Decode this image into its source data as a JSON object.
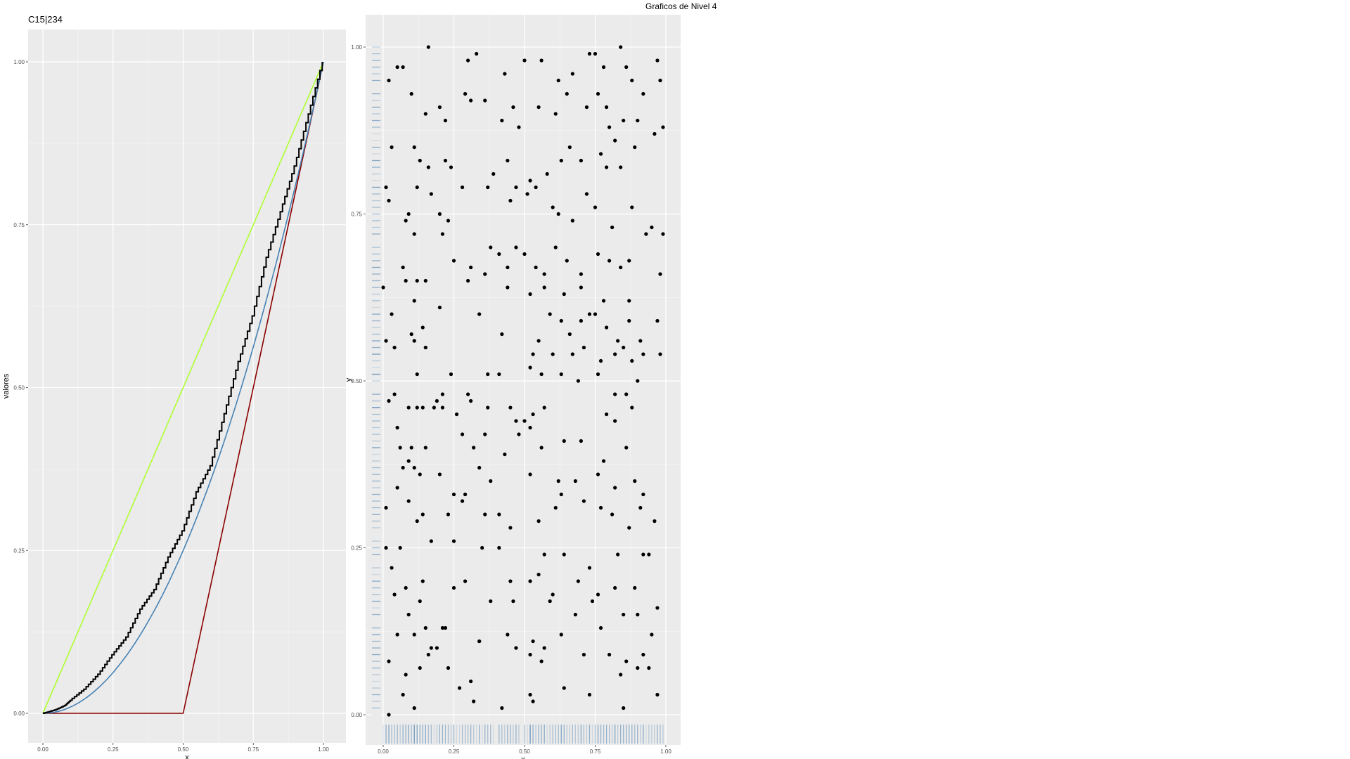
{
  "title": "Graficos de Nivel 4",
  "chart_data": [
    {
      "type": "line",
      "title": "C15|234",
      "xlabel": "x",
      "ylabel": "valores",
      "xlim": [
        0,
        1
      ],
      "ylim": [
        0,
        1
      ],
      "x_ticks": [
        "0.00",
        "0.25",
        "0.50",
        "0.75",
        "1.00"
      ],
      "y_ticks": [
        "0.00",
        "0.25",
        "0.50",
        "0.75",
        "1.00"
      ],
      "grid": true,
      "series": [
        {
          "color": "#adff2f",
          "x": [
            0,
            1
          ],
          "values": [
            0,
            1
          ]
        },
        {
          "color": "#8b0000",
          "x": [
            0,
            0.5,
            1
          ],
          "values": [
            0,
            0,
            1
          ]
        },
        {
          "color": "#4682b4",
          "formula": "x^2",
          "x": [
            0,
            0.1,
            0.2,
            0.3,
            0.4,
            0.5,
            0.6,
            0.7,
            0.8,
            0.9,
            1
          ],
          "values": [
            0,
            0.01,
            0.04,
            0.09,
            0.16,
            0.25,
            0.36,
            0.49,
            0.64,
            0.81,
            1
          ]
        },
        {
          "color": "#000000",
          "step": true,
          "x": [
            0,
            0.02,
            0.05,
            0.08,
            0.1,
            0.15,
            0.2,
            0.25,
            0.3,
            0.35,
            0.4,
            0.45,
            0.5,
            0.55,
            0.6,
            0.65,
            0.7,
            0.75,
            0.8,
            0.85,
            0.9,
            0.95,
            1
          ],
          "values": [
            0,
            0.002,
            0.006,
            0.012,
            0.02,
            0.037,
            0.06,
            0.09,
            0.117,
            0.16,
            0.19,
            0.24,
            0.28,
            0.34,
            0.38,
            0.46,
            0.54,
            0.61,
            0.7,
            0.77,
            0.84,
            0.92,
            1
          ]
        }
      ]
    },
    {
      "type": "scatter",
      "xlabel": "x",
      "ylabel": "y",
      "xlim": [
        0,
        1
      ],
      "ylim": [
        0,
        1
      ],
      "x_ticks": [
        "0.00",
        "0.25",
        "0.50",
        "0.75",
        "1.00"
      ],
      "y_ticks": [
        "0.00",
        "0.25",
        "0.50",
        "0.75",
        "1.00"
      ],
      "grid": true,
      "rug": true,
      "point_color": "#000000",
      "rug_color": "#4682b4",
      "points": [
        [
          0.02,
          0.95
        ],
        [
          0.05,
          0.97
        ],
        [
          0.07,
          0.97
        ],
        [
          0.16,
          1.0
        ],
        [
          0.3,
          0.98
        ],
        [
          0.33,
          0.99
        ],
        [
          0.43,
          0.96
        ],
        [
          0.5,
          0.98
        ],
        [
          0.56,
          0.98
        ],
        [
          0.62,
          0.95
        ],
        [
          0.67,
          0.96
        ],
        [
          0.73,
          0.99
        ],
        [
          0.75,
          0.99
        ],
        [
          0.78,
          0.97
        ],
        [
          0.84,
          1.0
        ],
        [
          0.86,
          0.97
        ],
        [
          0.88,
          0.95
        ],
        [
          0.92,
          0.93
        ],
        [
          0.97,
          0.98
        ],
        [
          0.98,
          0.95
        ],
        [
          0.1,
          0.93
        ],
        [
          0.15,
          0.9
        ],
        [
          0.2,
          0.91
        ],
        [
          0.22,
          0.89
        ],
        [
          0.29,
          0.93
        ],
        [
          0.31,
          0.92
        ],
        [
          0.36,
          0.92
        ],
        [
          0.42,
          0.89
        ],
        [
          0.46,
          0.91
        ],
        [
          0.48,
          0.88
        ],
        [
          0.55,
          0.91
        ],
        [
          0.61,
          0.9
        ],
        [
          0.65,
          0.93
        ],
        [
          0.72,
          0.91
        ],
        [
          0.76,
          0.93
        ],
        [
          0.79,
          0.91
        ],
        [
          0.8,
          0.88
        ],
        [
          0.85,
          0.89
        ],
        [
          0.9,
          0.89
        ],
        [
          0.96,
          0.87
        ],
        [
          0.99,
          0.88
        ],
        [
          0.03,
          0.85
        ],
        [
          0.11,
          0.85
        ],
        [
          0.13,
          0.83
        ],
        [
          0.16,
          0.82
        ],
        [
          0.22,
          0.83
        ],
        [
          0.24,
          0.82
        ],
        [
          0.39,
          0.81
        ],
        [
          0.44,
          0.83
        ],
        [
          0.47,
          0.79
        ],
        [
          0.52,
          0.8
        ],
        [
          0.58,
          0.81
        ],
        [
          0.63,
          0.83
        ],
        [
          0.66,
          0.85
        ],
        [
          0.7,
          0.83
        ],
        [
          0.77,
          0.84
        ],
        [
          0.79,
          0.82
        ],
        [
          0.82,
          0.86
        ],
        [
          0.84,
          0.82
        ],
        [
          0.89,
          0.85
        ],
        [
          0.01,
          0.79
        ],
        [
          0.02,
          0.77
        ],
        [
          0.09,
          0.75
        ],
        [
          0.12,
          0.79
        ],
        [
          0.17,
          0.78
        ],
        [
          0.2,
          0.75
        ],
        [
          0.23,
          0.74
        ],
        [
          0.28,
          0.79
        ],
        [
          0.37,
          0.79
        ],
        [
          0.45,
          0.77
        ],
        [
          0.51,
          0.78
        ],
        [
          0.54,
          0.79
        ],
        [
          0.6,
          0.76
        ],
        [
          0.62,
          0.75
        ],
        [
          0.67,
          0.74
        ],
        [
          0.72,
          0.78
        ],
        [
          0.75,
          0.76
        ],
        [
          0.81,
          0.73
        ],
        [
          0.88,
          0.76
        ],
        [
          0.93,
          0.72
        ],
        [
          0.95,
          0.73
        ],
        [
          0.99,
          0.72
        ],
        [
          0.08,
          0.74
        ],
        [
          0.11,
          0.72
        ],
        [
          0.21,
          0.72
        ],
        [
          0.25,
          0.68
        ],
        [
          0.31,
          0.67
        ],
        [
          0.38,
          0.7
        ],
        [
          0.41,
          0.69
        ],
        [
          0.44,
          0.67
        ],
        [
          0.47,
          0.7
        ],
        [
          0.5,
          0.69
        ],
        [
          0.54,
          0.67
        ],
        [
          0.57,
          0.66
        ],
        [
          0.61,
          0.7
        ],
        [
          0.65,
          0.68
        ],
        [
          0.7,
          0.66
        ],
        [
          0.76,
          0.69
        ],
        [
          0.8,
          0.68
        ],
        [
          0.84,
          0.67
        ],
        [
          0.87,
          0.68
        ],
        [
          0.98,
          0.66
        ],
        [
          0.0,
          0.64
        ],
        [
          0.07,
          0.67
        ],
        [
          0.08,
          0.65
        ],
        [
          0.12,
          0.65
        ],
        [
          0.15,
          0.65
        ],
        [
          0.3,
          0.65
        ],
        [
          0.36,
          0.66
        ],
        [
          0.44,
          0.64
        ],
        [
          0.52,
          0.63
        ],
        [
          0.57,
          0.64
        ],
        [
          0.64,
          0.63
        ],
        [
          0.7,
          0.64
        ],
        [
          0.73,
          0.6
        ],
        [
          0.78,
          0.62
        ],
        [
          0.87,
          0.62
        ],
        [
          0.03,
          0.6
        ],
        [
          0.11,
          0.62
        ],
        [
          0.2,
          0.61
        ],
        [
          0.34,
          0.6
        ],
        [
          0.59,
          0.6
        ],
        [
          0.63,
          0.59
        ],
        [
          0.66,
          0.57
        ],
        [
          0.7,
          0.59
        ],
        [
          0.75,
          0.6
        ],
        [
          0.79,
          0.58
        ],
        [
          0.83,
          0.56
        ],
        [
          0.87,
          0.59
        ],
        [
          0.91,
          0.56
        ],
        [
          0.97,
          0.59
        ],
        [
          0.01,
          0.56
        ],
        [
          0.04,
          0.55
        ],
        [
          0.1,
          0.57
        ],
        [
          0.11,
          0.56
        ],
        [
          0.14,
          0.58
        ],
        [
          0.15,
          0.55
        ],
        [
          0.42,
          0.57
        ],
        [
          0.53,
          0.54
        ],
        [
          0.55,
          0.56
        ],
        [
          0.6,
          0.54
        ],
        [
          0.67,
          0.54
        ],
        [
          0.71,
          0.55
        ],
        [
          0.77,
          0.53
        ],
        [
          0.82,
          0.54
        ],
        [
          0.85,
          0.55
        ],
        [
          0.88,
          0.53
        ],
        [
          0.92,
          0.54
        ],
        [
          0.98,
          0.54
        ],
        [
          0.02,
          0.47
        ],
        [
          0.04,
          0.48
        ],
        [
          0.12,
          0.51
        ],
        [
          0.19,
          0.47
        ],
        [
          0.21,
          0.48
        ],
        [
          0.24,
          0.51
        ],
        [
          0.3,
          0.48
        ],
        [
          0.37,
          0.51
        ],
        [
          0.41,
          0.51
        ],
        [
          0.52,
          0.52
        ],
        [
          0.56,
          0.51
        ],
        [
          0.63,
          0.51
        ],
        [
          0.69,
          0.5
        ],
        [
          0.76,
          0.51
        ],
        [
          0.82,
          0.48
        ],
        [
          0.86,
          0.48
        ],
        [
          0.9,
          0.5
        ],
        [
          0.09,
          0.46
        ],
        [
          0.12,
          0.46
        ],
        [
          0.14,
          0.46
        ],
        [
          0.18,
          0.46
        ],
        [
          0.21,
          0.46
        ],
        [
          0.26,
          0.45
        ],
        [
          0.31,
          0.47
        ],
        [
          0.37,
          0.46
        ],
        [
          0.45,
          0.46
        ],
        [
          0.47,
          0.44
        ],
        [
          0.5,
          0.44
        ],
        [
          0.53,
          0.45
        ],
        [
          0.57,
          0.46
        ],
        [
          0.79,
          0.45
        ],
        [
          0.82,
          0.44
        ],
        [
          0.88,
          0.46
        ],
        [
          0.05,
          0.43
        ],
        [
          0.06,
          0.4
        ],
        [
          0.1,
          0.4
        ],
        [
          0.15,
          0.4
        ],
        [
          0.28,
          0.42
        ],
        [
          0.32,
          0.4
        ],
        [
          0.36,
          0.42
        ],
        [
          0.43,
          0.39
        ],
        [
          0.48,
          0.42
        ],
        [
          0.52,
          0.43
        ],
        [
          0.56,
          0.4
        ],
        [
          0.64,
          0.41
        ],
        [
          0.7,
          0.41
        ],
        [
          0.78,
          0.38
        ],
        [
          0.86,
          0.4
        ],
        [
          0.07,
          0.37
        ],
        [
          0.09,
          0.38
        ],
        [
          0.11,
          0.37
        ],
        [
          0.13,
          0.36
        ],
        [
          0.2,
          0.36
        ],
        [
          0.25,
          0.33
        ],
        [
          0.28,
          0.32
        ],
        [
          0.34,
          0.37
        ],
        [
          0.38,
          0.35
        ],
        [
          0.52,
          0.36
        ],
        [
          0.62,
          0.35
        ],
        [
          0.63,
          0.33
        ],
        [
          0.68,
          0.35
        ],
        [
          0.76,
          0.36
        ],
        [
          0.82,
          0.34
        ],
        [
          0.89,
          0.35
        ],
        [
          0.92,
          0.33
        ],
        [
          0.01,
          0.31
        ],
        [
          0.05,
          0.34
        ],
        [
          0.09,
          0.32
        ],
        [
          0.12,
          0.29
        ],
        [
          0.14,
          0.3
        ],
        [
          0.23,
          0.3
        ],
        [
          0.29,
          0.33
        ],
        [
          0.36,
          0.3
        ],
        [
          0.41,
          0.3
        ],
        [
          0.45,
          0.28
        ],
        [
          0.55,
          0.29
        ],
        [
          0.61,
          0.31
        ],
        [
          0.71,
          0.32
        ],
        [
          0.77,
          0.31
        ],
        [
          0.81,
          0.3
        ],
        [
          0.87,
          0.28
        ],
        [
          0.91,
          0.31
        ],
        [
          0.96,
          0.29
        ],
        [
          0.01,
          0.25
        ],
        [
          0.06,
          0.25
        ],
        [
          0.17,
          0.26
        ],
        [
          0.25,
          0.26
        ],
        [
          0.35,
          0.25
        ],
        [
          0.41,
          0.25
        ],
        [
          0.57,
          0.24
        ],
        [
          0.64,
          0.24
        ],
        [
          0.73,
          0.22
        ],
        [
          0.83,
          0.24
        ],
        [
          0.92,
          0.24
        ],
        [
          0.94,
          0.24
        ],
        [
          0.03,
          0.22
        ],
        [
          0.08,
          0.19
        ],
        [
          0.14,
          0.2
        ],
        [
          0.25,
          0.19
        ],
        [
          0.29,
          0.2
        ],
        [
          0.45,
          0.2
        ],
        [
          0.52,
          0.2
        ],
        [
          0.55,
          0.21
        ],
        [
          0.59,
          0.17
        ],
        [
          0.69,
          0.2
        ],
        [
          0.76,
          0.18
        ],
        [
          0.82,
          0.19
        ],
        [
          0.89,
          0.19
        ],
        [
          0.97,
          0.16
        ],
        [
          0.04,
          0.18
        ],
        [
          0.13,
          0.17
        ],
        [
          0.38,
          0.17
        ],
        [
          0.46,
          0.17
        ],
        [
          0.6,
          0.18
        ],
        [
          0.68,
          0.15
        ],
        [
          0.74,
          0.17
        ],
        [
          0.85,
          0.15
        ],
        [
          0.9,
          0.15
        ],
        [
          0.95,
          0.12
        ],
        [
          0.05,
          0.12
        ],
        [
          0.09,
          0.15
        ],
        [
          0.11,
          0.12
        ],
        [
          0.15,
          0.13
        ],
        [
          0.17,
          0.1
        ],
        [
          0.21,
          0.13
        ],
        [
          0.22,
          0.13
        ],
        [
          0.34,
          0.11
        ],
        [
          0.44,
          0.12
        ],
        [
          0.53,
          0.11
        ],
        [
          0.57,
          0.1
        ],
        [
          0.63,
          0.12
        ],
        [
          0.71,
          0.09
        ],
        [
          0.77,
          0.13
        ],
        [
          0.8,
          0.09
        ],
        [
          0.86,
          0.08
        ],
        [
          0.92,
          0.09
        ],
        [
          0.02,
          0.08
        ],
        [
          0.08,
          0.06
        ],
        [
          0.13,
          0.07
        ],
        [
          0.16,
          0.09
        ],
        [
          0.19,
          0.1
        ],
        [
          0.23,
          0.07
        ],
        [
          0.34,
          0.11
        ],
        [
          0.47,
          0.1
        ],
        [
          0.52,
          0.09
        ],
        [
          0.56,
          0.08
        ],
        [
          0.64,
          0.04
        ],
        [
          0.73,
          0.03
        ],
        [
          0.84,
          0.06
        ],
        [
          0.9,
          0.07
        ],
        [
          0.94,
          0.07
        ],
        [
          0.07,
          0.03
        ],
        [
          0.11,
          0.01
        ],
        [
          0.27,
          0.04
        ],
        [
          0.31,
          0.05
        ],
        [
          0.32,
          0.02
        ],
        [
          0.42,
          0.01
        ],
        [
          0.52,
          0.03
        ],
        [
          0.53,
          0.02
        ],
        [
          0.85,
          0.01
        ],
        [
          0.97,
          0.03
        ],
        [
          0.02,
          0.0
        ]
      ]
    }
  ]
}
